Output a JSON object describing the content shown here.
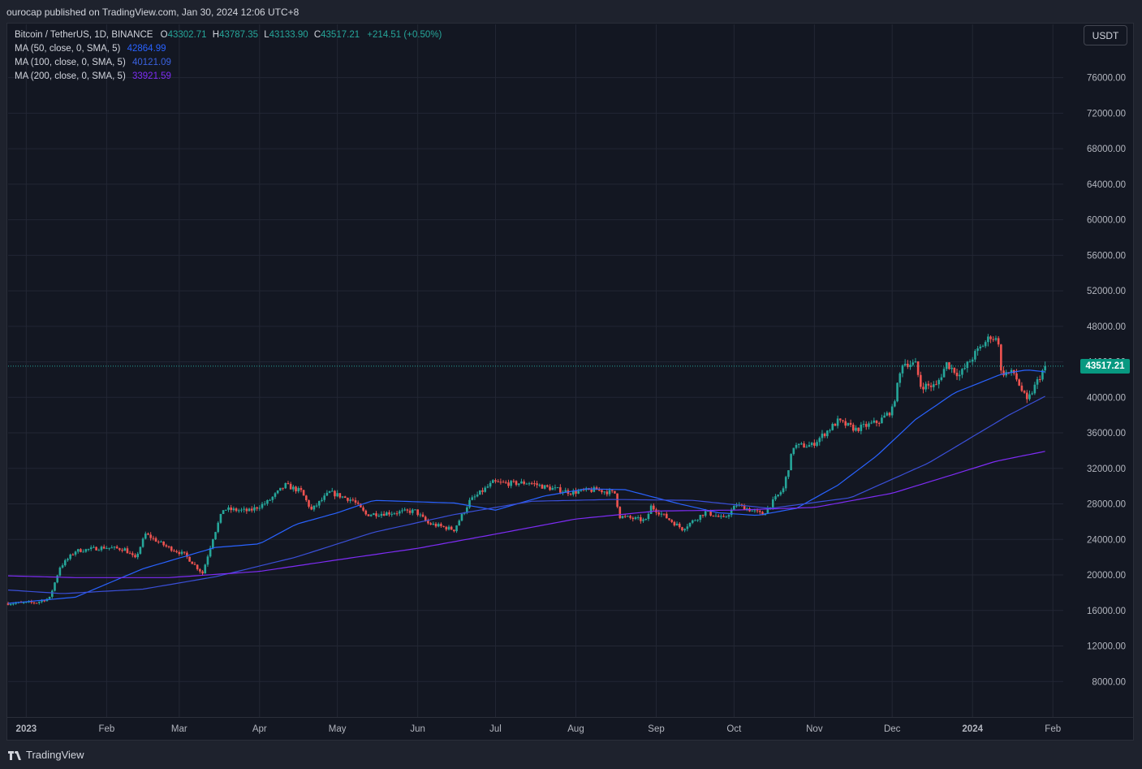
{
  "header": {
    "published": "ourocap published on TradingView.com, Jan 30, 2024 12:06 UTC+8"
  },
  "legend": {
    "symbol": "Bitcoin / TetherUS, 1D, BINANCE",
    "o_label": "O",
    "o_value": "43302.71",
    "h_label": "H",
    "h_value": "43787.35",
    "l_label": "L",
    "l_value": "43133.90",
    "c_label": "C",
    "c_value": "43517.21",
    "change": "+214.51 (+0.50%)",
    "ma50_label": "MA (50, close, 0, SMA, 5)",
    "ma50_value": "42864.99",
    "ma100_label": "MA (100, close, 0, SMA, 5)",
    "ma100_value": "40121.09",
    "ma200_label": "MA (200, close, 0, SMA, 5)",
    "ma200_value": "33921.59"
  },
  "toolbar": {
    "currency": "USDT"
  },
  "last_price": "43517.21",
  "footer": {
    "brand": "TradingView"
  },
  "colors": {
    "up": "#26a69a",
    "down": "#ef5350",
    "ma50": "#2962ff",
    "ma100": "#3a4fd8",
    "ma200": "#7e2cf5",
    "grid": "#232734"
  },
  "chart_data": {
    "type": "candlestick",
    "yticks": [
      "76000.00",
      "72000.00",
      "68000.00",
      "64000.00",
      "60000.00",
      "56000.00",
      "52000.00",
      "48000.00",
      "44000.00",
      "40000.00",
      "36000.00",
      "32000.00",
      "28000.00",
      "24000.00",
      "20000.00",
      "16000.00",
      "12000.00",
      "8000.00"
    ],
    "ytick_values": [
      76000,
      72000,
      68000,
      64000,
      60000,
      56000,
      52000,
      48000,
      44000,
      40000,
      36000,
      32000,
      28000,
      24000,
      20000,
      16000,
      12000,
      8000
    ],
    "xticks": [
      "2023",
      "Feb",
      "Mar",
      "Apr",
      "May",
      "Jun",
      "Jul",
      "Aug",
      "Sep",
      "Oct",
      "Nov",
      "Dec",
      "2024",
      "Feb"
    ],
    "xtick_dates": [
      "2023-01-01",
      "2023-02-01",
      "2023-03-01",
      "2023-04-01",
      "2023-05-01",
      "2023-06-01",
      "2023-07-01",
      "2023-08-01",
      "2023-09-01",
      "2023-10-01",
      "2023-11-01",
      "2023-12-01",
      "2024-01-01",
      "2024-02-01"
    ],
    "ylim": [
      4000,
      82000
    ],
    "xlim": [
      "2022-12-25",
      "2024-02-05"
    ],
    "series": [
      {
        "name": "BTCUSDT",
        "dates_start": "2022-12-25",
        "dates_end": "2024-01-29",
        "close_anchors": [
          [
            "2022-12-25",
            16800
          ],
          [
            "2023-01-05",
            16900
          ],
          [
            "2023-01-10",
            17400
          ],
          [
            "2023-01-14",
            20900
          ],
          [
            "2023-01-20",
            22700
          ],
          [
            "2023-01-31",
            23100
          ],
          [
            "2023-02-08",
            22900
          ],
          [
            "2023-02-12",
            21800
          ],
          [
            "2023-02-16",
            24600
          ],
          [
            "2023-02-24",
            23200
          ],
          [
            "2023-03-03",
            22300
          ],
          [
            "2023-03-10",
            20200
          ],
          [
            "2023-03-14",
            24200
          ],
          [
            "2023-03-18",
            27400
          ],
          [
            "2023-03-28",
            27200
          ],
          [
            "2023-04-04",
            28200
          ],
          [
            "2023-04-11",
            30100
          ],
          [
            "2023-04-17",
            29400
          ],
          [
            "2023-04-21",
            27300
          ],
          [
            "2023-04-28",
            29300
          ],
          [
            "2023-05-07",
            28400
          ],
          [
            "2023-05-12",
            26800
          ],
          [
            "2023-05-31",
            27200
          ],
          [
            "2023-06-05",
            25800
          ],
          [
            "2023-06-15",
            25100
          ],
          [
            "2023-06-21",
            28300
          ],
          [
            "2023-06-30",
            30400
          ],
          [
            "2023-07-07",
            30300
          ],
          [
            "2023-07-14",
            30400
          ],
          [
            "2023-07-20",
            29900
          ],
          [
            "2023-07-30",
            29300
          ],
          [
            "2023-08-09",
            29600
          ],
          [
            "2023-08-16",
            29200
          ],
          [
            "2023-08-18",
            26600
          ],
          [
            "2023-08-28",
            26100
          ],
          [
            "2023-08-30",
            27700
          ],
          [
            "2023-09-11",
            25200
          ],
          [
            "2023-09-20",
            27100
          ],
          [
            "2023-09-27",
            26300
          ],
          [
            "2023-10-02",
            27900
          ],
          [
            "2023-10-12",
            26800
          ],
          [
            "2023-10-20",
            29700
          ],
          [
            "2023-10-24",
            34500
          ],
          [
            "2023-10-31",
            34600
          ],
          [
            "2023-11-10",
            37300
          ],
          [
            "2023-11-17",
            36400
          ],
          [
            "2023-11-26",
            37300
          ],
          [
            "2023-12-01",
            38600
          ],
          [
            "2023-12-05",
            43900
          ],
          [
            "2023-12-10",
            43700
          ],
          [
            "2023-12-12",
            41300
          ],
          [
            "2023-12-18",
            41300
          ],
          [
            "2023-12-22",
            43800
          ],
          [
            "2023-12-27",
            42500
          ],
          [
            "2024-01-02",
            44900
          ],
          [
            "2024-01-08",
            46900
          ],
          [
            "2024-01-11",
            46300
          ],
          [
            "2024-01-12",
            42800
          ],
          [
            "2024-01-17",
            42700
          ],
          [
            "2024-01-22",
            39500
          ],
          [
            "2024-01-26",
            41800
          ],
          [
            "2024-01-29",
            43517.21
          ]
        ]
      },
      {
        "name": "MA (50, close, 0, SMA, 5)",
        "anchors": [
          [
            "2022-12-25",
            16800
          ],
          [
            "2023-01-20",
            17500
          ],
          [
            "2023-02-15",
            20700
          ],
          [
            "2023-03-15",
            23100
          ],
          [
            "2023-04-01",
            23500
          ],
          [
            "2023-04-15",
            25700
          ],
          [
            "2023-05-01",
            27000
          ],
          [
            "2023-05-15",
            28400
          ],
          [
            "2023-06-15",
            28100
          ],
          [
            "2023-07-01",
            27300
          ],
          [
            "2023-07-20",
            28900
          ],
          [
            "2023-08-05",
            29700
          ],
          [
            "2023-08-20",
            29600
          ],
          [
            "2023-09-10",
            28000
          ],
          [
            "2023-09-25",
            27000
          ],
          [
            "2023-10-10",
            26700
          ],
          [
            "2023-10-25",
            27500
          ],
          [
            "2023-11-10",
            30100
          ],
          [
            "2023-11-25",
            33400
          ],
          [
            "2023-12-10",
            37500
          ],
          [
            "2023-12-25",
            40500
          ],
          [
            "2024-01-12",
            42600
          ],
          [
            "2024-01-22",
            43100
          ],
          [
            "2024-01-29",
            42865
          ]
        ]
      },
      {
        "name": "MA (100, close, 0, SMA, 5)",
        "anchors": [
          [
            "2022-12-25",
            18300
          ],
          [
            "2023-01-15",
            17900
          ],
          [
            "2023-02-15",
            18400
          ],
          [
            "2023-03-15",
            19800
          ],
          [
            "2023-04-15",
            22000
          ],
          [
            "2023-05-15",
            24800
          ],
          [
            "2023-06-15",
            26800
          ],
          [
            "2023-07-15",
            28300
          ],
          [
            "2023-08-15",
            28500
          ],
          [
            "2023-09-15",
            28400
          ],
          [
            "2023-10-15",
            27500
          ],
          [
            "2023-11-15",
            28700
          ],
          [
            "2023-12-15",
            32600
          ],
          [
            "2024-01-15",
            38000
          ],
          [
            "2024-01-29",
            40121
          ]
        ]
      },
      {
        "name": "MA (200, close, 0, SMA, 5)",
        "anchors": [
          [
            "2022-12-25",
            19900
          ],
          [
            "2023-01-20",
            19700
          ],
          [
            "2023-02-25",
            19700
          ],
          [
            "2023-04-01",
            20400
          ],
          [
            "2023-05-01",
            21700
          ],
          [
            "2023-06-01",
            23000
          ],
          [
            "2023-07-01",
            24600
          ],
          [
            "2023-08-01",
            26300
          ],
          [
            "2023-09-01",
            27200
          ],
          [
            "2023-10-01",
            27300
          ],
          [
            "2023-11-01",
            27600
          ],
          [
            "2023-12-01",
            29200
          ],
          [
            "2023-12-20",
            30900
          ],
          [
            "2024-01-10",
            32800
          ],
          [
            "2024-01-29",
            33922
          ]
        ]
      }
    ]
  }
}
